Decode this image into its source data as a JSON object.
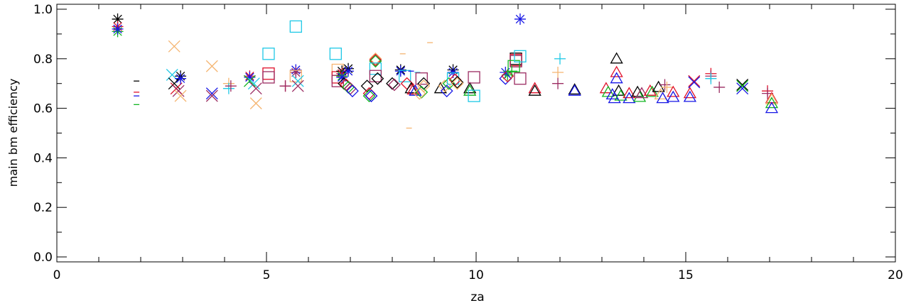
{
  "chart_data": {
    "type": "scatter",
    "title": "",
    "xlabel": "za",
    "ylabel": "main bm efficiency",
    "xlim": [
      0,
      20
    ],
    "ylim": [
      -0.02,
      1.02
    ],
    "xticks": [
      0,
      5,
      10,
      15,
      20
    ],
    "yticks": [
      0.0,
      0.2,
      0.4,
      0.6,
      0.8,
      1.0
    ],
    "xtick_labels": [
      "0",
      "5",
      "10",
      "15",
      "20"
    ],
    "ytick_labels": [
      "0.0",
      "0.2",
      "0.4",
      "0.6",
      "0.8",
      "1.0"
    ],
    "grid": false,
    "legend": "none",
    "colors": {
      "black": "#000000",
      "red": "#e0102a",
      "green": "#11b521",
      "blue": "#1616e6",
      "cyan": "#1ec8e6",
      "orange": "#f5b571",
      "purple": "#9b2c62"
    },
    "points": [
      {
        "x": 1.45,
        "y": 0.96,
        "marker": "asterisk",
        "color": "black"
      },
      {
        "x": 1.45,
        "y": 0.93,
        "marker": "asterisk",
        "color": "red"
      },
      {
        "x": 1.45,
        "y": 0.91,
        "marker": "asterisk",
        "color": "green"
      },
      {
        "x": 1.45,
        "y": 0.92,
        "marker": "asterisk",
        "color": "blue"
      },
      {
        "x": 1.9,
        "y": 0.71,
        "marker": "dash",
        "color": "black"
      },
      {
        "x": 1.9,
        "y": 0.665,
        "marker": "dash",
        "color": "red"
      },
      {
        "x": 1.9,
        "y": 0.65,
        "marker": "dash",
        "color": "blue"
      },
      {
        "x": 1.9,
        "y": 0.615,
        "marker": "dash",
        "color": "green"
      },
      {
        "x": 2.8,
        "y": 0.85,
        "marker": "x",
        "color": "orange"
      },
      {
        "x": 2.75,
        "y": 0.735,
        "marker": "x",
        "color": "cyan"
      },
      {
        "x": 2.8,
        "y": 0.7,
        "marker": "x",
        "color": "black"
      },
      {
        "x": 2.85,
        "y": 0.68,
        "marker": "x",
        "color": "red"
      },
      {
        "x": 2.9,
        "y": 0.67,
        "marker": "x",
        "color": "purple"
      },
      {
        "x": 2.95,
        "y": 0.73,
        "marker": "asterisk",
        "color": "black"
      },
      {
        "x": 2.95,
        "y": 0.72,
        "marker": "asterisk",
        "color": "blue"
      },
      {
        "x": 2.95,
        "y": 0.65,
        "marker": "x",
        "color": "orange"
      },
      {
        "x": 3.7,
        "y": 0.77,
        "marker": "x",
        "color": "orange"
      },
      {
        "x": 3.7,
        "y": 0.66,
        "marker": "x",
        "color": "blue"
      },
      {
        "x": 3.7,
        "y": 0.65,
        "marker": "x",
        "color": "purple"
      },
      {
        "x": 4.1,
        "y": 0.7,
        "marker": "plus",
        "color": "orange"
      },
      {
        "x": 4.1,
        "y": 0.68,
        "marker": "plus",
        "color": "cyan"
      },
      {
        "x": 4.15,
        "y": 0.69,
        "marker": "plus",
        "color": "purple"
      },
      {
        "x": 4.6,
        "y": 0.73,
        "marker": "asterisk",
        "color": "red"
      },
      {
        "x": 4.6,
        "y": 0.725,
        "marker": "asterisk",
        "color": "blue"
      },
      {
        "x": 4.6,
        "y": 0.71,
        "marker": "x",
        "color": "green"
      },
      {
        "x": 4.7,
        "y": 0.7,
        "marker": "x",
        "color": "cyan"
      },
      {
        "x": 4.75,
        "y": 0.68,
        "marker": "x",
        "color": "purple"
      },
      {
        "x": 4.75,
        "y": 0.62,
        "marker": "x",
        "color": "orange"
      },
      {
        "x": 5.05,
        "y": 0.82,
        "marker": "square",
        "color": "cyan"
      },
      {
        "x": 5.05,
        "y": 0.74,
        "marker": "square",
        "color": "red"
      },
      {
        "x": 5.05,
        "y": 0.725,
        "marker": "square",
        "color": "purple"
      },
      {
        "x": 5.45,
        "y": 0.69,
        "marker": "plus",
        "color": "red"
      },
      {
        "x": 5.45,
        "y": 0.69,
        "marker": "plus",
        "color": "purple"
      },
      {
        "x": 5.7,
        "y": 0.93,
        "marker": "square",
        "color": "cyan"
      },
      {
        "x": 5.7,
        "y": 0.755,
        "marker": "asterisk",
        "color": "blue"
      },
      {
        "x": 5.7,
        "y": 0.745,
        "marker": "asterisk",
        "color": "purple"
      },
      {
        "x": 5.7,
        "y": 0.73,
        "marker": "square",
        "color": "orange"
      },
      {
        "x": 5.75,
        "y": 0.71,
        "marker": "x",
        "color": "cyan"
      },
      {
        "x": 5.75,
        "y": 0.69,
        "marker": "x",
        "color": "purple"
      },
      {
        "x": 6.65,
        "y": 0.82,
        "marker": "square",
        "color": "cyan"
      },
      {
        "x": 6.7,
        "y": 0.755,
        "marker": "square",
        "color": "orange"
      },
      {
        "x": 6.7,
        "y": 0.725,
        "marker": "square",
        "color": "red"
      },
      {
        "x": 6.7,
        "y": 0.71,
        "marker": "square",
        "color": "purple"
      },
      {
        "x": 6.8,
        "y": 0.75,
        "marker": "asterisk",
        "color": "black"
      },
      {
        "x": 6.8,
        "y": 0.74,
        "marker": "asterisk",
        "color": "red"
      },
      {
        "x": 6.8,
        "y": 0.73,
        "marker": "asterisk",
        "color": "green"
      },
      {
        "x": 6.8,
        "y": 0.725,
        "marker": "asterisk",
        "color": "blue"
      },
      {
        "x": 6.95,
        "y": 0.76,
        "marker": "asterisk",
        "color": "black"
      },
      {
        "x": 6.95,
        "y": 0.75,
        "marker": "asterisk",
        "color": "blue"
      },
      {
        "x": 6.85,
        "y": 0.7,
        "marker": "diamond",
        "color": "black"
      },
      {
        "x": 6.9,
        "y": 0.695,
        "marker": "diamond",
        "color": "red"
      },
      {
        "x": 6.95,
        "y": 0.685,
        "marker": "diamond",
        "color": "green"
      },
      {
        "x": 7.0,
        "y": 0.68,
        "marker": "diamond",
        "color": "purple"
      },
      {
        "x": 7.05,
        "y": 0.67,
        "marker": "diamond",
        "color": "blue"
      },
      {
        "x": 7.4,
        "y": 0.69,
        "marker": "diamond",
        "color": "black"
      },
      {
        "x": 7.45,
        "y": 0.66,
        "marker": "diamond",
        "color": "red"
      },
      {
        "x": 7.45,
        "y": 0.65,
        "marker": "diamond",
        "color": "green"
      },
      {
        "x": 7.5,
        "y": 0.65,
        "marker": "diamond",
        "color": "blue"
      },
      {
        "x": 7.6,
        "y": 0.8,
        "marker": "diamond",
        "color": "orange"
      },
      {
        "x": 7.6,
        "y": 0.795,
        "marker": "diamond",
        "color": "red"
      },
      {
        "x": 7.6,
        "y": 0.79,
        "marker": "diamond",
        "color": "green"
      },
      {
        "x": 7.6,
        "y": 0.76,
        "marker": "square",
        "color": "cyan"
      },
      {
        "x": 7.6,
        "y": 0.73,
        "marker": "square",
        "color": "purple"
      },
      {
        "x": 7.65,
        "y": 0.72,
        "marker": "diamond",
        "color": "black"
      },
      {
        "x": 8.0,
        "y": 0.7,
        "marker": "diamond",
        "color": "black"
      },
      {
        "x": 8.05,
        "y": 0.695,
        "marker": "diamond",
        "color": "purple"
      },
      {
        "x": 8.2,
        "y": 0.755,
        "marker": "asterisk",
        "color": "black"
      },
      {
        "x": 8.2,
        "y": 0.75,
        "marker": "asterisk",
        "color": "blue"
      },
      {
        "x": 8.25,
        "y": 0.82,
        "marker": "dash",
        "color": "orange"
      },
      {
        "x": 8.3,
        "y": 0.73,
        "marker": "square",
        "color": "cyan"
      },
      {
        "x": 8.35,
        "y": 0.7,
        "marker": "diamond",
        "color": "red"
      },
      {
        "x": 8.45,
        "y": 0.68,
        "marker": "triangle",
        "color": "black"
      },
      {
        "x": 8.5,
        "y": 0.675,
        "marker": "triangle",
        "color": "red"
      },
      {
        "x": 8.55,
        "y": 0.67,
        "marker": "triangle",
        "color": "blue"
      },
      {
        "x": 8.4,
        "y": 0.52,
        "marker": "dash",
        "color": "orange"
      },
      {
        "x": 8.45,
        "y": 0.75,
        "marker": "dash",
        "color": "blue"
      },
      {
        "x": 8.6,
        "y": 0.745,
        "marker": "dash",
        "color": "cyan"
      },
      {
        "x": 8.7,
        "y": 0.72,
        "marker": "square",
        "color": "purple"
      },
      {
        "x": 8.75,
        "y": 0.7,
        "marker": "diamond",
        "color": "black"
      },
      {
        "x": 8.75,
        "y": 0.69,
        "marker": "diamond",
        "color": "orange"
      },
      {
        "x": 8.7,
        "y": 0.665,
        "marker": "diamond",
        "color": "green"
      },
      {
        "x": 8.65,
        "y": 0.66,
        "marker": "diamond",
        "color": "orange"
      },
      {
        "x": 8.9,
        "y": 0.865,
        "marker": "dash",
        "color": "orange"
      },
      {
        "x": 9.15,
        "y": 0.68,
        "marker": "triangle",
        "color": "black"
      },
      {
        "x": 9.25,
        "y": 0.69,
        "marker": "diamond",
        "color": "orange"
      },
      {
        "x": 9.3,
        "y": 0.67,
        "marker": "diamond",
        "color": "blue"
      },
      {
        "x": 9.35,
        "y": 0.7,
        "marker": "diamond",
        "color": "green"
      },
      {
        "x": 9.45,
        "y": 0.755,
        "marker": "asterisk",
        "color": "black"
      },
      {
        "x": 9.45,
        "y": 0.745,
        "marker": "asterisk",
        "color": "blue"
      },
      {
        "x": 9.45,
        "y": 0.72,
        "marker": "square",
        "color": "cyan"
      },
      {
        "x": 9.5,
        "y": 0.715,
        "marker": "diamond",
        "color": "red"
      },
      {
        "x": 9.55,
        "y": 0.705,
        "marker": "diamond",
        "color": "black"
      },
      {
        "x": 9.55,
        "y": 0.7,
        "marker": "diamond",
        "color": "orange"
      },
      {
        "x": 9.85,
        "y": 0.68,
        "marker": "triangle",
        "color": "black"
      },
      {
        "x": 9.85,
        "y": 0.67,
        "marker": "triangle",
        "color": "green"
      },
      {
        "x": 9.95,
        "y": 0.725,
        "marker": "square",
        "color": "purple"
      },
      {
        "x": 9.95,
        "y": 0.65,
        "marker": "square",
        "color": "cyan"
      },
      {
        "x": 10.7,
        "y": 0.745,
        "marker": "asterisk",
        "color": "blue"
      },
      {
        "x": 10.75,
        "y": 0.735,
        "marker": "asterisk",
        "color": "green"
      },
      {
        "x": 10.7,
        "y": 0.72,
        "marker": "diamond",
        "color": "blue"
      },
      {
        "x": 10.75,
        "y": 0.73,
        "marker": "diamond",
        "color": "red"
      },
      {
        "x": 10.95,
        "y": 0.8,
        "marker": "square",
        "color": "black"
      },
      {
        "x": 10.95,
        "y": 0.795,
        "marker": "square",
        "color": "red"
      },
      {
        "x": 10.95,
        "y": 0.79,
        "marker": "square",
        "color": "purple"
      },
      {
        "x": 10.9,
        "y": 0.77,
        "marker": "square",
        "color": "green"
      },
      {
        "x": 11.05,
        "y": 0.81,
        "marker": "square",
        "color": "cyan"
      },
      {
        "x": 11.05,
        "y": 0.72,
        "marker": "square",
        "color": "purple"
      },
      {
        "x": 11.05,
        "y": 0.96,
        "marker": "asterisk",
        "color": "blue"
      },
      {
        "x": 10.85,
        "y": 0.75,
        "marker": "plus",
        "color": "green"
      },
      {
        "x": 11.4,
        "y": 0.68,
        "marker": "triangle",
        "color": "red"
      },
      {
        "x": 11.4,
        "y": 0.67,
        "marker": "triangle",
        "color": "black"
      },
      {
        "x": 12.0,
        "y": 0.8,
        "marker": "plus",
        "color": "cyan"
      },
      {
        "x": 11.95,
        "y": 0.745,
        "marker": "plus",
        "color": "orange"
      },
      {
        "x": 11.95,
        "y": 0.7,
        "marker": "plus",
        "color": "purple"
      },
      {
        "x": 12.35,
        "y": 0.675,
        "marker": "triangle",
        "color": "black"
      },
      {
        "x": 12.35,
        "y": 0.67,
        "marker": "triangle",
        "color": "blue"
      },
      {
        "x": 13.1,
        "y": 0.68,
        "marker": "triangle",
        "color": "red"
      },
      {
        "x": 13.15,
        "y": 0.665,
        "marker": "triangle",
        "color": "green"
      },
      {
        "x": 13.25,
        "y": 0.655,
        "marker": "triangle",
        "color": "blue"
      },
      {
        "x": 13.35,
        "y": 0.8,
        "marker": "triangle",
        "color": "black"
      },
      {
        "x": 13.35,
        "y": 0.745,
        "marker": "triangle",
        "color": "red"
      },
      {
        "x": 13.35,
        "y": 0.72,
        "marker": "triangle",
        "color": "blue"
      },
      {
        "x": 13.4,
        "y": 0.67,
        "marker": "triangle",
        "color": "black"
      },
      {
        "x": 13.3,
        "y": 0.64,
        "marker": "triangle",
        "color": "blue"
      },
      {
        "x": 13.45,
        "y": 0.65,
        "marker": "triangle",
        "color": "green"
      },
      {
        "x": 13.65,
        "y": 0.66,
        "marker": "triangle",
        "color": "red"
      },
      {
        "x": 13.65,
        "y": 0.64,
        "marker": "triangle",
        "color": "blue"
      },
      {
        "x": 13.85,
        "y": 0.665,
        "marker": "triangle",
        "color": "black"
      },
      {
        "x": 13.9,
        "y": 0.645,
        "marker": "triangle",
        "color": "green"
      },
      {
        "x": 13.95,
        "y": 0.66,
        "marker": "triangle",
        "color": "purple"
      },
      {
        "x": 14.15,
        "y": 0.67,
        "marker": "triangle",
        "color": "red"
      },
      {
        "x": 14.2,
        "y": 0.665,
        "marker": "triangle",
        "color": "green"
      },
      {
        "x": 14.35,
        "y": 0.685,
        "marker": "triangle",
        "color": "black"
      },
      {
        "x": 14.4,
        "y": 0.655,
        "marker": "triangle",
        "color": "orange"
      },
      {
        "x": 14.45,
        "y": 0.64,
        "marker": "triangle",
        "color": "blue"
      },
      {
        "x": 14.5,
        "y": 0.695,
        "marker": "plus",
        "color": "purple"
      },
      {
        "x": 14.55,
        "y": 0.685,
        "marker": "plus",
        "color": "orange"
      },
      {
        "x": 14.7,
        "y": 0.665,
        "marker": "triangle",
        "color": "red"
      },
      {
        "x": 14.7,
        "y": 0.645,
        "marker": "triangle",
        "color": "blue"
      },
      {
        "x": 15.1,
        "y": 0.66,
        "marker": "triangle",
        "color": "red"
      },
      {
        "x": 15.1,
        "y": 0.645,
        "marker": "triangle",
        "color": "blue"
      },
      {
        "x": 15.2,
        "y": 0.71,
        "marker": "x",
        "color": "red"
      },
      {
        "x": 15.2,
        "y": 0.705,
        "marker": "x",
        "color": "blue"
      },
      {
        "x": 15.6,
        "y": 0.74,
        "marker": "plus",
        "color": "red"
      },
      {
        "x": 15.6,
        "y": 0.73,
        "marker": "plus",
        "color": "purple"
      },
      {
        "x": 15.6,
        "y": 0.72,
        "marker": "plus",
        "color": "cyan"
      },
      {
        "x": 15.8,
        "y": 0.685,
        "marker": "plus",
        "color": "purple"
      },
      {
        "x": 16.35,
        "y": 0.695,
        "marker": "x",
        "color": "black"
      },
      {
        "x": 16.35,
        "y": 0.69,
        "marker": "x",
        "color": "green"
      },
      {
        "x": 16.35,
        "y": 0.68,
        "marker": "x",
        "color": "blue"
      },
      {
        "x": 16.95,
        "y": 0.67,
        "marker": "plus",
        "color": "red"
      },
      {
        "x": 16.95,
        "y": 0.66,
        "marker": "plus",
        "color": "purple"
      },
      {
        "x": 17.05,
        "y": 0.64,
        "marker": "triangle",
        "color": "red"
      },
      {
        "x": 17.05,
        "y": 0.635,
        "marker": "triangle",
        "color": "orange"
      },
      {
        "x": 17.05,
        "y": 0.62,
        "marker": "triangle",
        "color": "green"
      },
      {
        "x": 17.05,
        "y": 0.6,
        "marker": "triangle",
        "color": "blue"
      }
    ]
  }
}
